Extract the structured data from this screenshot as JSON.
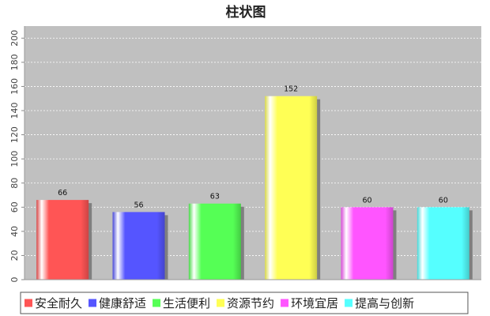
{
  "chart_data": {
    "type": "bar",
    "title": "柱状图",
    "xlabel": "",
    "ylabel": "",
    "categories": [
      "安全耐久",
      "健康舒适",
      "生活便利",
      "资源节约",
      "环境宜居",
      "提高与创新"
    ],
    "values": [
      66,
      56,
      63,
      152,
      60,
      60
    ],
    "colors": [
      "#ff5555",
      "#5555ff",
      "#55ff55",
      "#ffff55",
      "#ff55ff",
      "#55ffff"
    ],
    "ylim": [
      0,
      210
    ],
    "yticks": [
      0,
      20,
      40,
      60,
      80,
      100,
      120,
      140,
      160,
      180,
      200
    ],
    "grid": true,
    "legend_position": "bottom",
    "plot_background": "#c0c0c0"
  }
}
